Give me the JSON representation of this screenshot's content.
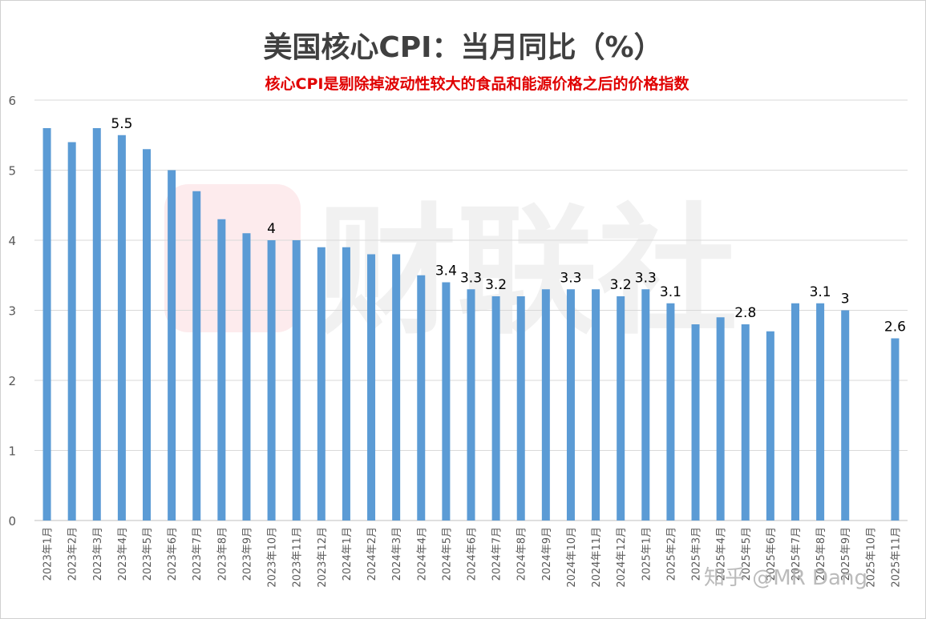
{
  "chart_data": {
    "type": "bar",
    "title": "美国核心CPI：当月同比（%）",
    "subtitle": "核心CPI是剔除掉波动性较大的食品和能源价格之后的价格指数",
    "categories": [
      "2023年1月",
      "2023年2月",
      "2023年3月",
      "2023年4月",
      "2023年5月",
      "2023年6月",
      "2023年7月",
      "2023年8月",
      "2023年9月",
      "2023年10月",
      "2023年11月",
      "2023年12月",
      "2024年1月",
      "2024年2月",
      "2024年3月",
      "2024年4月",
      "2024年5月",
      "2024年6月",
      "2024年7月",
      "2024年8月",
      "2024年9月",
      "2024年10月",
      "2024年11月",
      "2024年12月",
      "2025年1月",
      "2025年2月",
      "2025年3月",
      "2025年4月",
      "2025年5月",
      "2025年6月",
      "2025年7月",
      "2025年8月",
      "2025年9月",
      "2025年10月",
      "2025年11月"
    ],
    "values": [
      5.6,
      5.4,
      5.6,
      5.5,
      5.3,
      5.0,
      4.7,
      4.3,
      4.1,
      4.0,
      4.0,
      3.9,
      3.9,
      3.8,
      3.8,
      3.5,
      3.4,
      3.3,
      3.2,
      3.2,
      3.3,
      3.3,
      3.3,
      3.2,
      3.3,
      3.1,
      2.8,
      2.9,
      2.8,
      2.7,
      3.1,
      3.1,
      3.0,
      null,
      2.6
    ],
    "data_labels": [
      null,
      null,
      null,
      "5.5",
      null,
      null,
      null,
      null,
      null,
      "4",
      null,
      null,
      null,
      null,
      null,
      null,
      "3.4",
      "3.3",
      "3.2",
      null,
      null,
      "3.3",
      null,
      "3.2",
      "3.3",
      "3.1",
      null,
      null,
      "2.8",
      null,
      null,
      "3.1",
      "3",
      null,
      "2.6"
    ],
    "ylim": [
      0,
      6
    ],
    "yticks": [
      "0",
      "1",
      "2",
      "3",
      "4",
      "5",
      "6"
    ],
    "grid": true,
    "legend": "none",
    "bar_color": "#5b9bd5"
  },
  "watermark": {
    "brand": "财联社",
    "credit": "知乎 @MR Dang",
    "logo_color": "#e8384a"
  }
}
